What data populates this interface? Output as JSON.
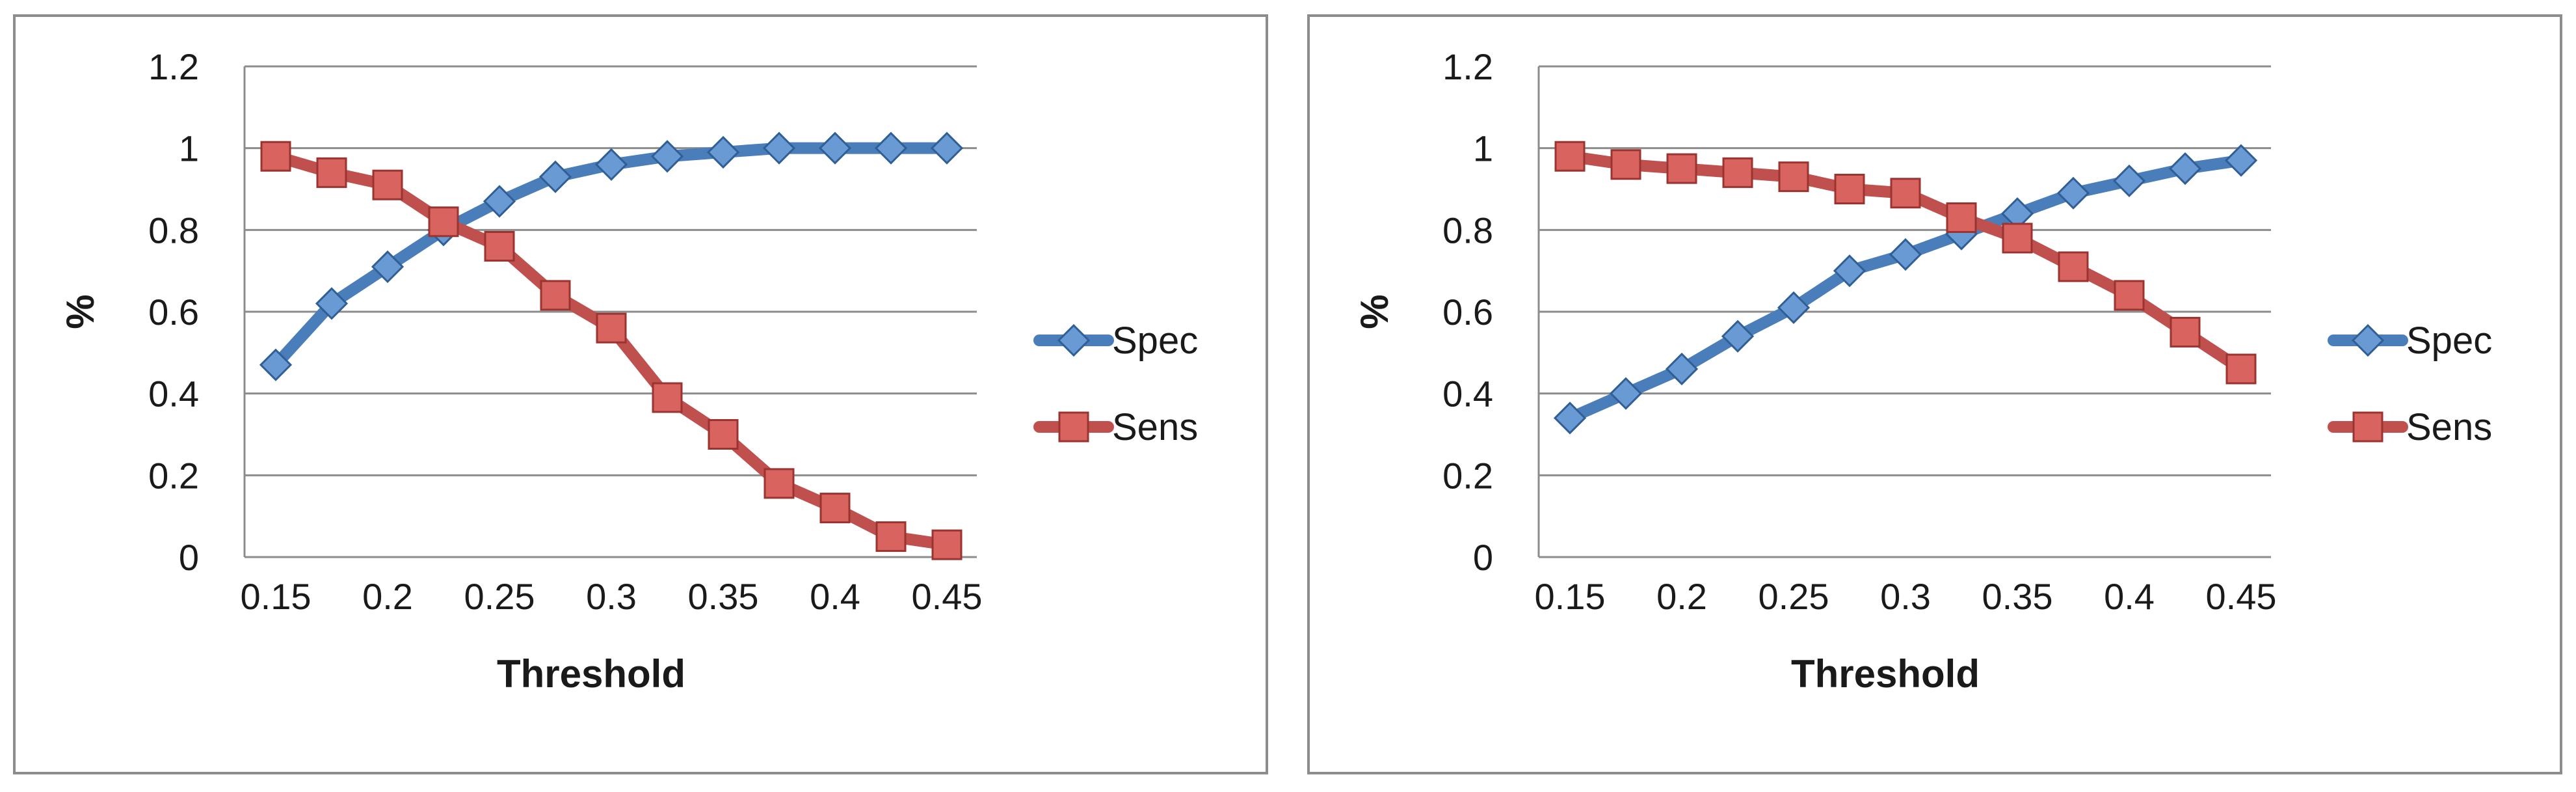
{
  "colors": {
    "spec": "#4a7ebb",
    "sens": "#c0504d",
    "grid": "#8c8c8c"
  },
  "chart_data": [
    {
      "type": "line",
      "xlabel": "Threshold",
      "ylabel": "%",
      "ylim": [
        0,
        1.2
      ],
      "yticks": [
        "0",
        "0.2",
        "0.4",
        "0.6",
        "0.8",
        "1",
        "1.2"
      ],
      "xticks": [
        "0.15",
        "0.2",
        "0.25",
        "0.3",
        "0.35",
        "0.4",
        "0.45"
      ],
      "grid": true,
      "legend_position": "right",
      "x": [
        0.15,
        0.175,
        0.2,
        0.225,
        0.25,
        0.275,
        0.3,
        0.325,
        0.35,
        0.375,
        0.4,
        0.425,
        0.45
      ],
      "series": [
        {
          "name": "Spec",
          "marker": "diamond",
          "values": [
            0.47,
            0.62,
            0.71,
            0.8,
            0.87,
            0.93,
            0.96,
            0.98,
            0.99,
            1.0,
            1.0,
            1.0,
            1.0
          ]
        },
        {
          "name": "Sens",
          "marker": "square",
          "values": [
            0.98,
            0.94,
            0.91,
            0.82,
            0.76,
            0.64,
            0.56,
            0.39,
            0.3,
            0.18,
            0.12,
            0.05,
            0.03
          ]
        }
      ]
    },
    {
      "type": "line",
      "xlabel": "Threshold",
      "ylabel": "%",
      "ylim": [
        0,
        1.2
      ],
      "yticks": [
        "0",
        "0.2",
        "0.4",
        "0.6",
        "0.8",
        "1",
        "1.2"
      ],
      "xticks": [
        "0.15",
        "0.2",
        "0.25",
        "0.3",
        "0.35",
        "0.4",
        "0.45"
      ],
      "grid": true,
      "legend_position": "right",
      "x": [
        0.15,
        0.175,
        0.2,
        0.225,
        0.25,
        0.275,
        0.3,
        0.325,
        0.35,
        0.375,
        0.4,
        0.425,
        0.45
      ],
      "series": [
        {
          "name": "Spec",
          "marker": "diamond",
          "values": [
            0.34,
            0.4,
            0.46,
            0.54,
            0.61,
            0.7,
            0.74,
            0.79,
            0.84,
            0.89,
            0.92,
            0.95,
            0.97
          ]
        },
        {
          "name": "Sens",
          "marker": "square",
          "values": [
            0.98,
            0.96,
            0.95,
            0.94,
            0.93,
            0.9,
            0.89,
            0.83,
            0.78,
            0.71,
            0.64,
            0.55,
            0.46
          ]
        }
      ]
    }
  ]
}
